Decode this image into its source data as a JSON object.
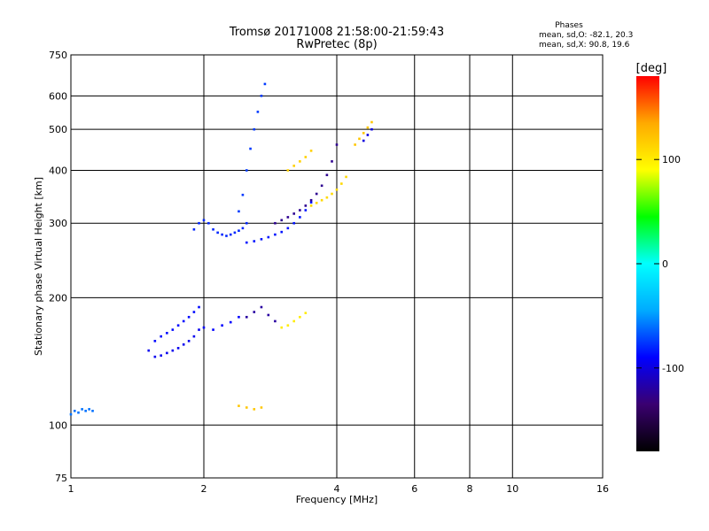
{
  "chart_data": {
    "type": "scatter",
    "title": "Tromsø 20171008 21:58:00-21:59:43",
    "subtitle": "RwPretec (8p)",
    "xlabel": "Frequency [MHz]",
    "ylabel": "Stationary phase Virtual Height [km]",
    "x_scale": "log",
    "y_scale": "log",
    "xlim": [
      1,
      16
    ],
    "ylim": [
      75,
      750
    ],
    "x_ticks": [
      1,
      2,
      4,
      6,
      8,
      10,
      16
    ],
    "y_ticks": [
      75,
      100,
      200,
      300,
      400,
      500,
      600,
      750
    ],
    "phase_stats": {
      "title": "Phases",
      "line_o": "mean, sd,O: -82.1, 20.3",
      "line_x": "mean, sd,X:  90.8, 19.6"
    },
    "colorbar": {
      "label": "[deg]",
      "range": [
        -180,
        180
      ],
      "ticks": [
        100,
        0,
        -100
      ],
      "colormap": [
        "#000000",
        "#3a0070",
        "#0000ff",
        "#00aaff",
        "#00ffff",
        "#00ff00",
        "#ffff00",
        "#ffaa00",
        "#ff0000"
      ]
    },
    "grid": true,
    "traces": [
      {
        "x": [
          1.0,
          1.02,
          1.04,
          1.06,
          1.08,
          1.1,
          1.12
        ],
        "y": [
          106,
          108,
          107,
          109,
          108,
          109,
          108
        ],
        "phase": -60
      },
      {
        "x": [
          1.5,
          1.55,
          1.6,
          1.65,
          1.7,
          1.75,
          1.8,
          1.85,
          1.9,
          1.95
        ],
        "y": [
          150,
          145,
          146,
          148,
          150,
          152,
          155,
          158,
          162,
          168
        ],
        "phase": -95
      },
      {
        "x": [
          1.55,
          1.6,
          1.65,
          1.7,
          1.75,
          1.8,
          1.85,
          1.9,
          1.95
        ],
        "y": [
          158,
          162,
          165,
          168,
          172,
          176,
          180,
          185,
          190
        ],
        "phase": -88
      },
      {
        "x": [
          1.9,
          1.95,
          2.0,
          2.05,
          2.1,
          2.15,
          2.2,
          2.25,
          2.3,
          2.35,
          2.4,
          2.45,
          2.5
        ],
        "y": [
          290,
          300,
          305,
          300,
          290,
          285,
          282,
          280,
          282,
          285,
          288,
          292,
          300
        ],
        "phase": -80
      },
      {
        "x": [
          2.4,
          2.45,
          2.5,
          2.55,
          2.6,
          2.65,
          2.7,
          2.75
        ],
        "y": [
          320,
          350,
          400,
          450,
          500,
          550,
          600,
          640
        ],
        "phase": -75
      },
      {
        "x": [
          2.5,
          2.6,
          2.7,
          2.8,
          2.9,
          3.0,
          3.1,
          3.2,
          3.3,
          3.4,
          3.5
        ],
        "y": [
          270,
          272,
          275,
          278,
          282,
          286,
          292,
          300,
          310,
          322,
          336
        ],
        "phase": -85
      },
      {
        "x": [
          2.9,
          3.0,
          3.1,
          3.2,
          3.3,
          3.4,
          3.5,
          3.6,
          3.7,
          3.8,
          3.9,
          4.0
        ],
        "y": [
          300,
          305,
          310,
          316,
          322,
          330,
          340,
          352,
          368,
          390,
          420,
          460
        ],
        "phase": -125
      },
      {
        "x": [
          2.5,
          2.6,
          2.7,
          2.8,
          2.9
        ],
        "y": [
          180,
          185,
          190,
          182,
          176
        ],
        "phase": -120
      },
      {
        "x": [
          3.0,
          3.1,
          3.2,
          3.3,
          3.4
        ],
        "y": [
          170,
          172,
          176,
          180,
          184
        ],
        "phase": 100
      },
      {
        "x": [
          3.5,
          3.6,
          3.7,
          3.8,
          3.9,
          4.0,
          4.1,
          4.2
        ],
        "y": [
          330,
          335,
          340,
          345,
          352,
          360,
          372,
          386
        ],
        "phase": 110
      },
      {
        "x": [
          3.1,
          3.2,
          3.3,
          3.4,
          3.5
        ],
        "y": [
          400,
          410,
          420,
          430,
          445
        ],
        "phase": 115
      },
      {
        "x": [
          4.4,
          4.5,
          4.6,
          4.7,
          4.8
        ],
        "y": [
          460,
          475,
          490,
          505,
          520
        ],
        "phase": 120
      },
      {
        "x": [
          4.6,
          4.7,
          4.8
        ],
        "y": [
          470,
          485,
          500
        ],
        "phase": -100
      },
      {
        "x": [
          2.4,
          2.5,
          2.6,
          2.7
        ],
        "y": [
          111,
          110,
          109,
          110
        ],
        "phase": 120
      },
      {
        "x": [
          2.0,
          2.1,
          2.2,
          2.3,
          2.4
        ],
        "y": [
          170,
          168,
          172,
          175,
          180
        ],
        "phase": -90
      }
    ]
  }
}
